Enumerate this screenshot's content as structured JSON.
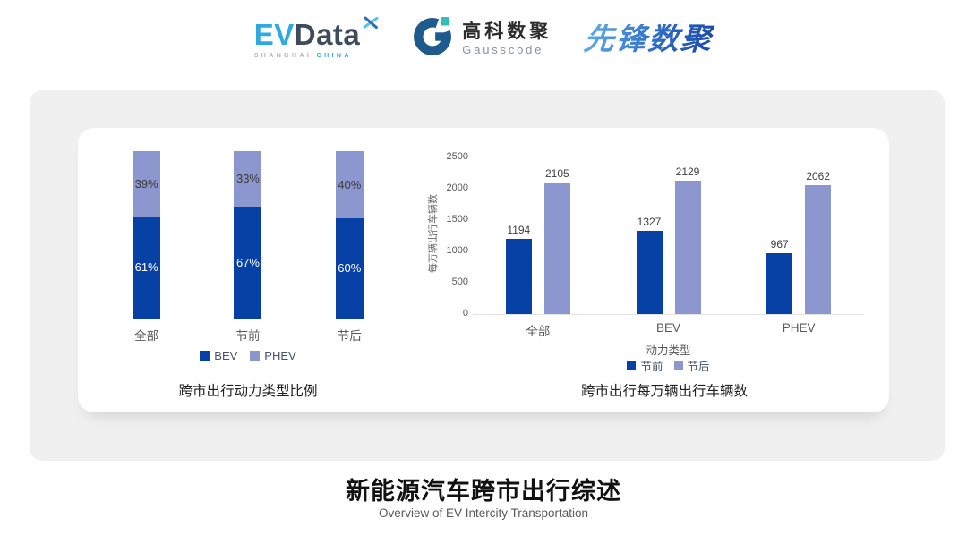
{
  "header": {
    "evdata": {
      "ev": "EV",
      "data": "Data",
      "tagline_left": "SHANGHAI",
      "tagline_right": "CHINA"
    },
    "gausscode": {
      "cn": "高科数聚",
      "en": "Gausscode"
    },
    "pioneer": {
      "cn": "先锋数聚"
    }
  },
  "colors": {
    "bev_dark_blue": "#0841a5",
    "phev_periwinkle": "#8b97ce",
    "axis_line": "#e3e3e3",
    "evdata_light_blue": "#2fa9e0",
    "evdata_dark_slate": "#3d4b5c",
    "gauss_blue": "#1e5b8d",
    "gauss_teal": "#33bdb4"
  },
  "chart_data": [
    {
      "type": "bar",
      "subtype": "stacked-percent",
      "title": "跨市出行动力类型比例",
      "categories": [
        "全部",
        "节前",
        "节后"
      ],
      "series": [
        {
          "name": "BEV",
          "color": "#0841a5",
          "values": [
            61,
            67,
            60
          ],
          "label_color": "#ffffff"
        },
        {
          "name": "PHEV",
          "color": "#8b97ce",
          "values": [
            39,
            33,
            40
          ],
          "label_color": "#3b3b3b"
        }
      ],
      "value_suffix": "%",
      "ylim": [
        0,
        100
      ],
      "legend_position": "bottom",
      "grid": false
    },
    {
      "type": "bar",
      "subtype": "grouped",
      "title": "跨市出行每万辆出行车辆数",
      "categories": [
        "全部",
        "BEV",
        "PHEV"
      ],
      "xlabel": "动力类型",
      "ylabel": "每万辆出行车辆数",
      "ylim": [
        0,
        2500
      ],
      "yticks": [
        0,
        500,
        1000,
        1500,
        2000,
        2500
      ],
      "series": [
        {
          "name": "节前",
          "color": "#0841a5",
          "values": [
            1194,
            1327,
            967
          ]
        },
        {
          "name": "节后",
          "color": "#8b97ce",
          "values": [
            2105,
            2129,
            2062
          ]
        }
      ],
      "legend_position": "bottom",
      "grid": false
    }
  ],
  "footer": {
    "title": "新能源汽车跨市出行综述",
    "subtitle": "Overview of EV Intercity Transportation"
  }
}
